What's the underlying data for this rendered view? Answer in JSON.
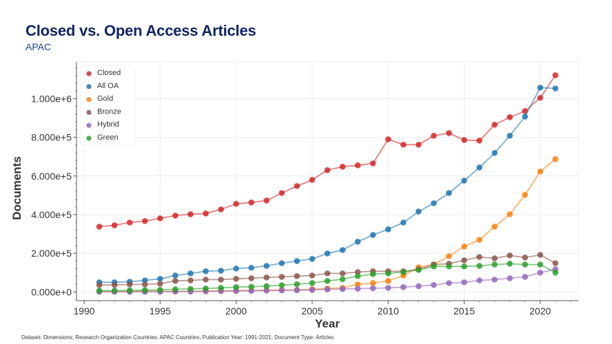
{
  "header": {
    "title": "Closed vs. Open Access Articles",
    "subtitle": "APAC"
  },
  "footer": {
    "note": "Dataset: Dimensions; Research Organization Countries: APAC Countries; Publication Year: 1991-2021; Document Type: Articles"
  },
  "chart_data": {
    "type": "line",
    "title": "Closed vs. Open Access Articles",
    "subtitle": "APAC",
    "xlabel": "Year",
    "ylabel": "Documents",
    "xlim": [
      1989.5,
      2022.5
    ],
    "ylim": [
      -45000,
      1190000
    ],
    "x_ticks": [
      1990,
      1995,
      2000,
      2005,
      2010,
      2015,
      2020
    ],
    "x_tick_labels": [
      "1990",
      "1995",
      "2000",
      "2005",
      "2010",
      "2015",
      "2020"
    ],
    "y_ticks": [
      0,
      200000,
      400000,
      600000,
      800000,
      1000000
    ],
    "y_tick_labels": [
      "0.000e+0",
      "2.000e+5",
      "4.000e+5",
      "6.000e+5",
      "8.000e+5",
      "1.000e+6"
    ],
    "grid": true,
    "legend_position": "top-left",
    "x": [
      1991,
      1992,
      1993,
      1994,
      1995,
      1996,
      1997,
      1998,
      1999,
      2000,
      2001,
      2002,
      2003,
      2004,
      2005,
      2006,
      2007,
      2008,
      2009,
      2010,
      2011,
      2012,
      2013,
      2014,
      2015,
      2016,
      2017,
      2018,
      2019,
      2020,
      2021
    ],
    "series": [
      {
        "name": "Closed",
        "color": "#d62728",
        "values": [
          338000,
          345000,
          359000,
          367000,
          381000,
          395000,
          402000,
          406000,
          427000,
          456000,
          463000,
          473000,
          512000,
          548000,
          580000,
          630000,
          648000,
          655000,
          665000,
          790000,
          762000,
          762000,
          808000,
          822000,
          786000,
          783000,
          865000,
          904000,
          936000,
          1004000,
          1121000
        ]
      },
      {
        "name": "All OA",
        "color": "#1f77b4",
        "values": [
          50000,
          50000,
          53000,
          60000,
          68000,
          85000,
          96000,
          107000,
          110000,
          121000,
          125000,
          135000,
          149000,
          160000,
          171000,
          199000,
          217000,
          260000,
          295000,
          324000,
          359000,
          416000,
          459000,
          512000,
          576000,
          644000,
          719000,
          808000,
          907000,
          1057000,
          1053000
        ]
      },
      {
        "name": "Gold",
        "color": "#ff7f0e",
        "values": [
          2000,
          2000,
          2000,
          3000,
          3000,
          3000,
          4000,
          5000,
          6000,
          7000,
          8000,
          9000,
          10000,
          11000,
          14000,
          18000,
          21000,
          39000,
          46000,
          57000,
          85000,
          128000,
          142000,
          185000,
          235000,
          270000,
          338000,
          402000,
          502000,
          623000,
          687000
        ]
      },
      {
        "name": "Bronze",
        "color": "#8c564b",
        "values": [
          36000,
          36000,
          39000,
          39000,
          43000,
          57000,
          60000,
          64000,
          64000,
          68000,
          71000,
          75000,
          78000,
          82000,
          85000,
          96000,
          96000,
          103000,
          107000,
          107000,
          107000,
          117000,
          142000,
          146000,
          164000,
          181000,
          174000,
          189000,
          178000,
          192000,
          149000
        ]
      },
      {
        "name": "Hybrid",
        "color": "#9467bd",
        "values": [
          1000,
          1000,
          1000,
          1000,
          1000,
          2000,
          2000,
          3000,
          4000,
          5000,
          6000,
          7000,
          8000,
          9000,
          11000,
          13000,
          15000,
          17000,
          19000,
          21000,
          25000,
          30000,
          36000,
          46000,
          50000,
          60000,
          64000,
          71000,
          78000,
          100000,
          117000
        ]
      },
      {
        "name": "Green",
        "color": "#2ca02c",
        "values": [
          7000,
          7000,
          8000,
          9000,
          11000,
          14000,
          16000,
          18000,
          21000,
          25000,
          27000,
          30000,
          35000,
          40000,
          46000,
          57000,
          66000,
          82000,
          92000,
          96000,
          103000,
          114000,
          132000,
          132000,
          132000,
          135000,
          142000,
          146000,
          142000,
          142000,
          100000
        ]
      }
    ]
  }
}
